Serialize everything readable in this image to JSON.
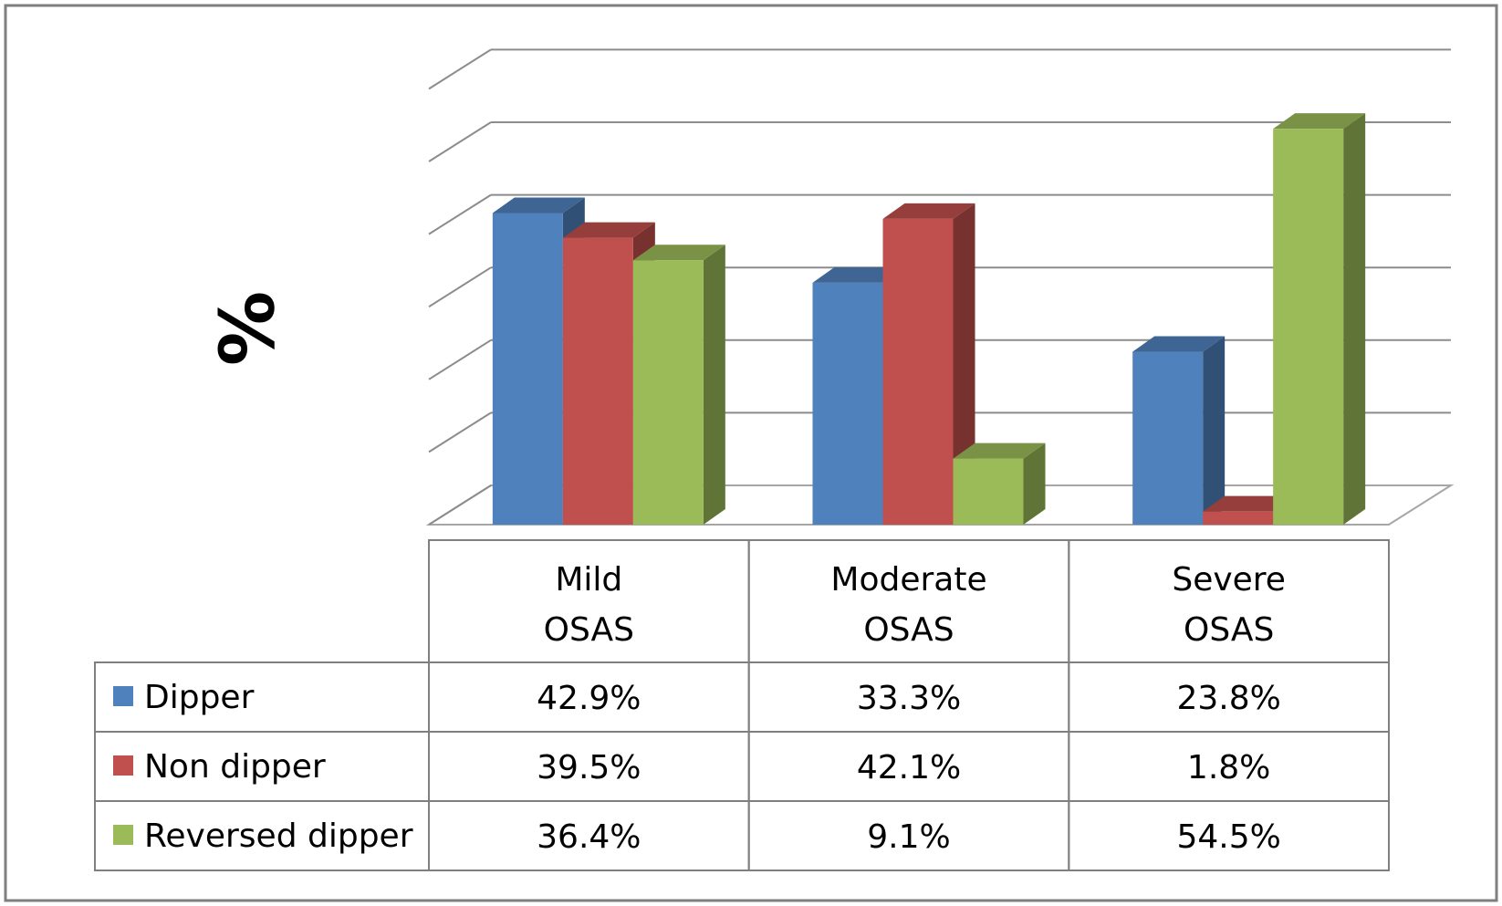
{
  "chart_data": {
    "type": "bar",
    "ylabel": "%",
    "ylim": [
      0,
      60
    ],
    "gridlines": [
      0,
      10,
      20,
      30,
      40,
      50,
      60
    ],
    "grid": true,
    "legend_placement": "data-table-left",
    "categories": [
      [
        "Mild",
        "OSAS"
      ],
      [
        "Moderate",
        "OSAS"
      ],
      [
        "Severe",
        "OSAS"
      ]
    ],
    "series": [
      {
        "name": "Dipper",
        "color": "#4F81BD",
        "values": [
          42.9,
          33.3,
          23.8
        ],
        "labels": [
          "42.9%",
          "33.3%",
          "23.8%"
        ]
      },
      {
        "name": "Non dipper",
        "color": "#C0504D",
        "values": [
          39.5,
          42.1,
          1.8
        ],
        "labels": [
          "39.5%",
          "42.1%",
          "1.8%"
        ]
      },
      {
        "name": "Reversed dipper",
        "color": "#9BBB59",
        "values": [
          36.4,
          9.1,
          54.5
        ],
        "labels": [
          "36.4%",
          "9.1%",
          "54.5%"
        ]
      }
    ]
  }
}
